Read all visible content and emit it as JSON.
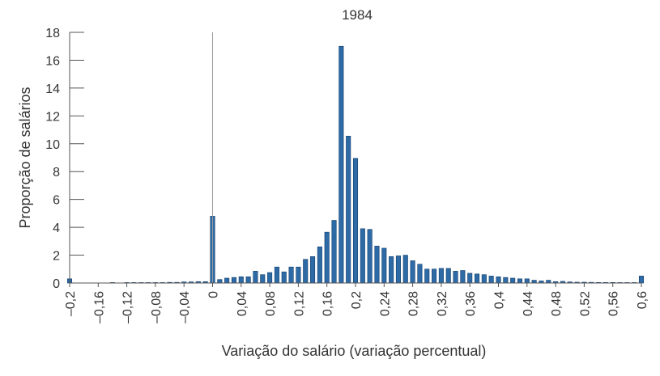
{
  "chart_data": {
    "type": "bar",
    "title": "1984",
    "xlabel": "Variação do salário (variação percentual)",
    "ylabel": "Proporção de salários",
    "xlim": [
      -0.2,
      0.6
    ],
    "ylim": [
      0,
      18
    ],
    "bin_width": 0.01,
    "yticks": [
      {
        "value": 0,
        "label": "0"
      },
      {
        "value": 2,
        "label": "2"
      },
      {
        "value": 4,
        "label": "4"
      },
      {
        "value": 6,
        "label": "6"
      },
      {
        "value": 8,
        "label": "8"
      },
      {
        "value": 10,
        "label": "10"
      },
      {
        "value": 12,
        "label": "12"
      },
      {
        "value": 14,
        "label": "14"
      },
      {
        "value": 16,
        "label": "16"
      },
      {
        "value": 18,
        "label": "18"
      }
    ],
    "xticks": [
      {
        "value": -0.2,
        "label": "–0,2"
      },
      {
        "value": -0.16,
        "label": "–0,16"
      },
      {
        "value": -0.12,
        "label": "–0,12"
      },
      {
        "value": -0.08,
        "label": "–0,08"
      },
      {
        "value": -0.04,
        "label": "–0,04"
      },
      {
        "value": 0,
        "label": "0"
      },
      {
        "value": 0.04,
        "label": "0,04"
      },
      {
        "value": 0.08,
        "label": "0,08"
      },
      {
        "value": 0.12,
        "label": "0,12"
      },
      {
        "value": 0.16,
        "label": "0,16"
      },
      {
        "value": 0.2,
        "label": "0,2"
      },
      {
        "value": 0.24,
        "label": "0,24"
      },
      {
        "value": 0.28,
        "label": "0,28"
      },
      {
        "value": 0.32,
        "label": "0,32"
      },
      {
        "value": 0.36,
        "label": "0,36"
      },
      {
        "value": 0.4,
        "label": "0,4"
      },
      {
        "value": 0.44,
        "label": "0,44"
      },
      {
        "value": 0.48,
        "label": "0,48"
      },
      {
        "value": 0.52,
        "label": "0,52"
      },
      {
        "value": 0.56,
        "label": "0,56"
      },
      {
        "value": 0.6,
        "label": "0,6"
      }
    ],
    "reference_line_x": 0,
    "bars": [
      {
        "x": -0.2,
        "y": 0.3
      },
      {
        "x": -0.14,
        "y": 0.03
      },
      {
        "x": -0.12,
        "y": 0.03
      },
      {
        "x": -0.11,
        "y": 0.03
      },
      {
        "x": -0.1,
        "y": 0.03
      },
      {
        "x": -0.09,
        "y": 0.03
      },
      {
        "x": -0.08,
        "y": 0.03
      },
      {
        "x": -0.07,
        "y": 0.03
      },
      {
        "x": -0.06,
        "y": 0.05
      },
      {
        "x": -0.05,
        "y": 0.05
      },
      {
        "x": -0.04,
        "y": 0.08
      },
      {
        "x": -0.03,
        "y": 0.08
      },
      {
        "x": -0.02,
        "y": 0.1
      },
      {
        "x": -0.01,
        "y": 0.1
      },
      {
        "x": 0.0,
        "y": 4.8
      },
      {
        "x": 0.01,
        "y": 0.25
      },
      {
        "x": 0.02,
        "y": 0.35
      },
      {
        "x": 0.03,
        "y": 0.4
      },
      {
        "x": 0.04,
        "y": 0.45
      },
      {
        "x": 0.05,
        "y": 0.45
      },
      {
        "x": 0.06,
        "y": 0.85
      },
      {
        "x": 0.07,
        "y": 0.6
      },
      {
        "x": 0.08,
        "y": 0.75
      },
      {
        "x": 0.09,
        "y": 1.15
      },
      {
        "x": 0.1,
        "y": 0.8
      },
      {
        "x": 0.11,
        "y": 1.15
      },
      {
        "x": 0.12,
        "y": 1.15
      },
      {
        "x": 0.13,
        "y": 1.7
      },
      {
        "x": 0.14,
        "y": 1.9
      },
      {
        "x": 0.15,
        "y": 2.6
      },
      {
        "x": 0.16,
        "y": 3.65
      },
      {
        "x": 0.17,
        "y": 4.5
      },
      {
        "x": 0.18,
        "y": 17.0
      },
      {
        "x": 0.19,
        "y": 10.55
      },
      {
        "x": 0.2,
        "y": 8.95
      },
      {
        "x": 0.21,
        "y": 3.9
      },
      {
        "x": 0.22,
        "y": 3.85
      },
      {
        "x": 0.23,
        "y": 2.65
      },
      {
        "x": 0.24,
        "y": 2.5
      },
      {
        "x": 0.25,
        "y": 1.9
      },
      {
        "x": 0.26,
        "y": 1.95
      },
      {
        "x": 0.27,
        "y": 2.0
      },
      {
        "x": 0.28,
        "y": 1.6
      },
      {
        "x": 0.29,
        "y": 1.35
      },
      {
        "x": 0.3,
        "y": 1.0
      },
      {
        "x": 0.31,
        "y": 1.0
      },
      {
        "x": 0.32,
        "y": 1.05
      },
      {
        "x": 0.33,
        "y": 1.05
      },
      {
        "x": 0.34,
        "y": 0.85
      },
      {
        "x": 0.35,
        "y": 0.9
      },
      {
        "x": 0.36,
        "y": 0.7
      },
      {
        "x": 0.37,
        "y": 0.65
      },
      {
        "x": 0.38,
        "y": 0.6
      },
      {
        "x": 0.39,
        "y": 0.5
      },
      {
        "x": 0.4,
        "y": 0.45
      },
      {
        "x": 0.41,
        "y": 0.4
      },
      {
        "x": 0.42,
        "y": 0.35
      },
      {
        "x": 0.43,
        "y": 0.3
      },
      {
        "x": 0.44,
        "y": 0.3
      },
      {
        "x": 0.45,
        "y": 0.2
      },
      {
        "x": 0.46,
        "y": 0.15
      },
      {
        "x": 0.47,
        "y": 0.2
      },
      {
        "x": 0.48,
        "y": 0.1
      },
      {
        "x": 0.49,
        "y": 0.12
      },
      {
        "x": 0.5,
        "y": 0.08
      },
      {
        "x": 0.51,
        "y": 0.06
      },
      {
        "x": 0.52,
        "y": 0.06
      },
      {
        "x": 0.53,
        "y": 0.05
      },
      {
        "x": 0.54,
        "y": 0.04
      },
      {
        "x": 0.55,
        "y": 0.04
      },
      {
        "x": 0.56,
        "y": 0.04
      },
      {
        "x": 0.57,
        "y": 0.03
      },
      {
        "x": 0.58,
        "y": 0.03
      },
      {
        "x": 0.59,
        "y": 0.03
      },
      {
        "x": 0.6,
        "y": 0.5
      }
    ],
    "bar_color": "#2d6aa6",
    "bar_edge_color": "#153f6b",
    "grid": false,
    "legend": "none"
  }
}
